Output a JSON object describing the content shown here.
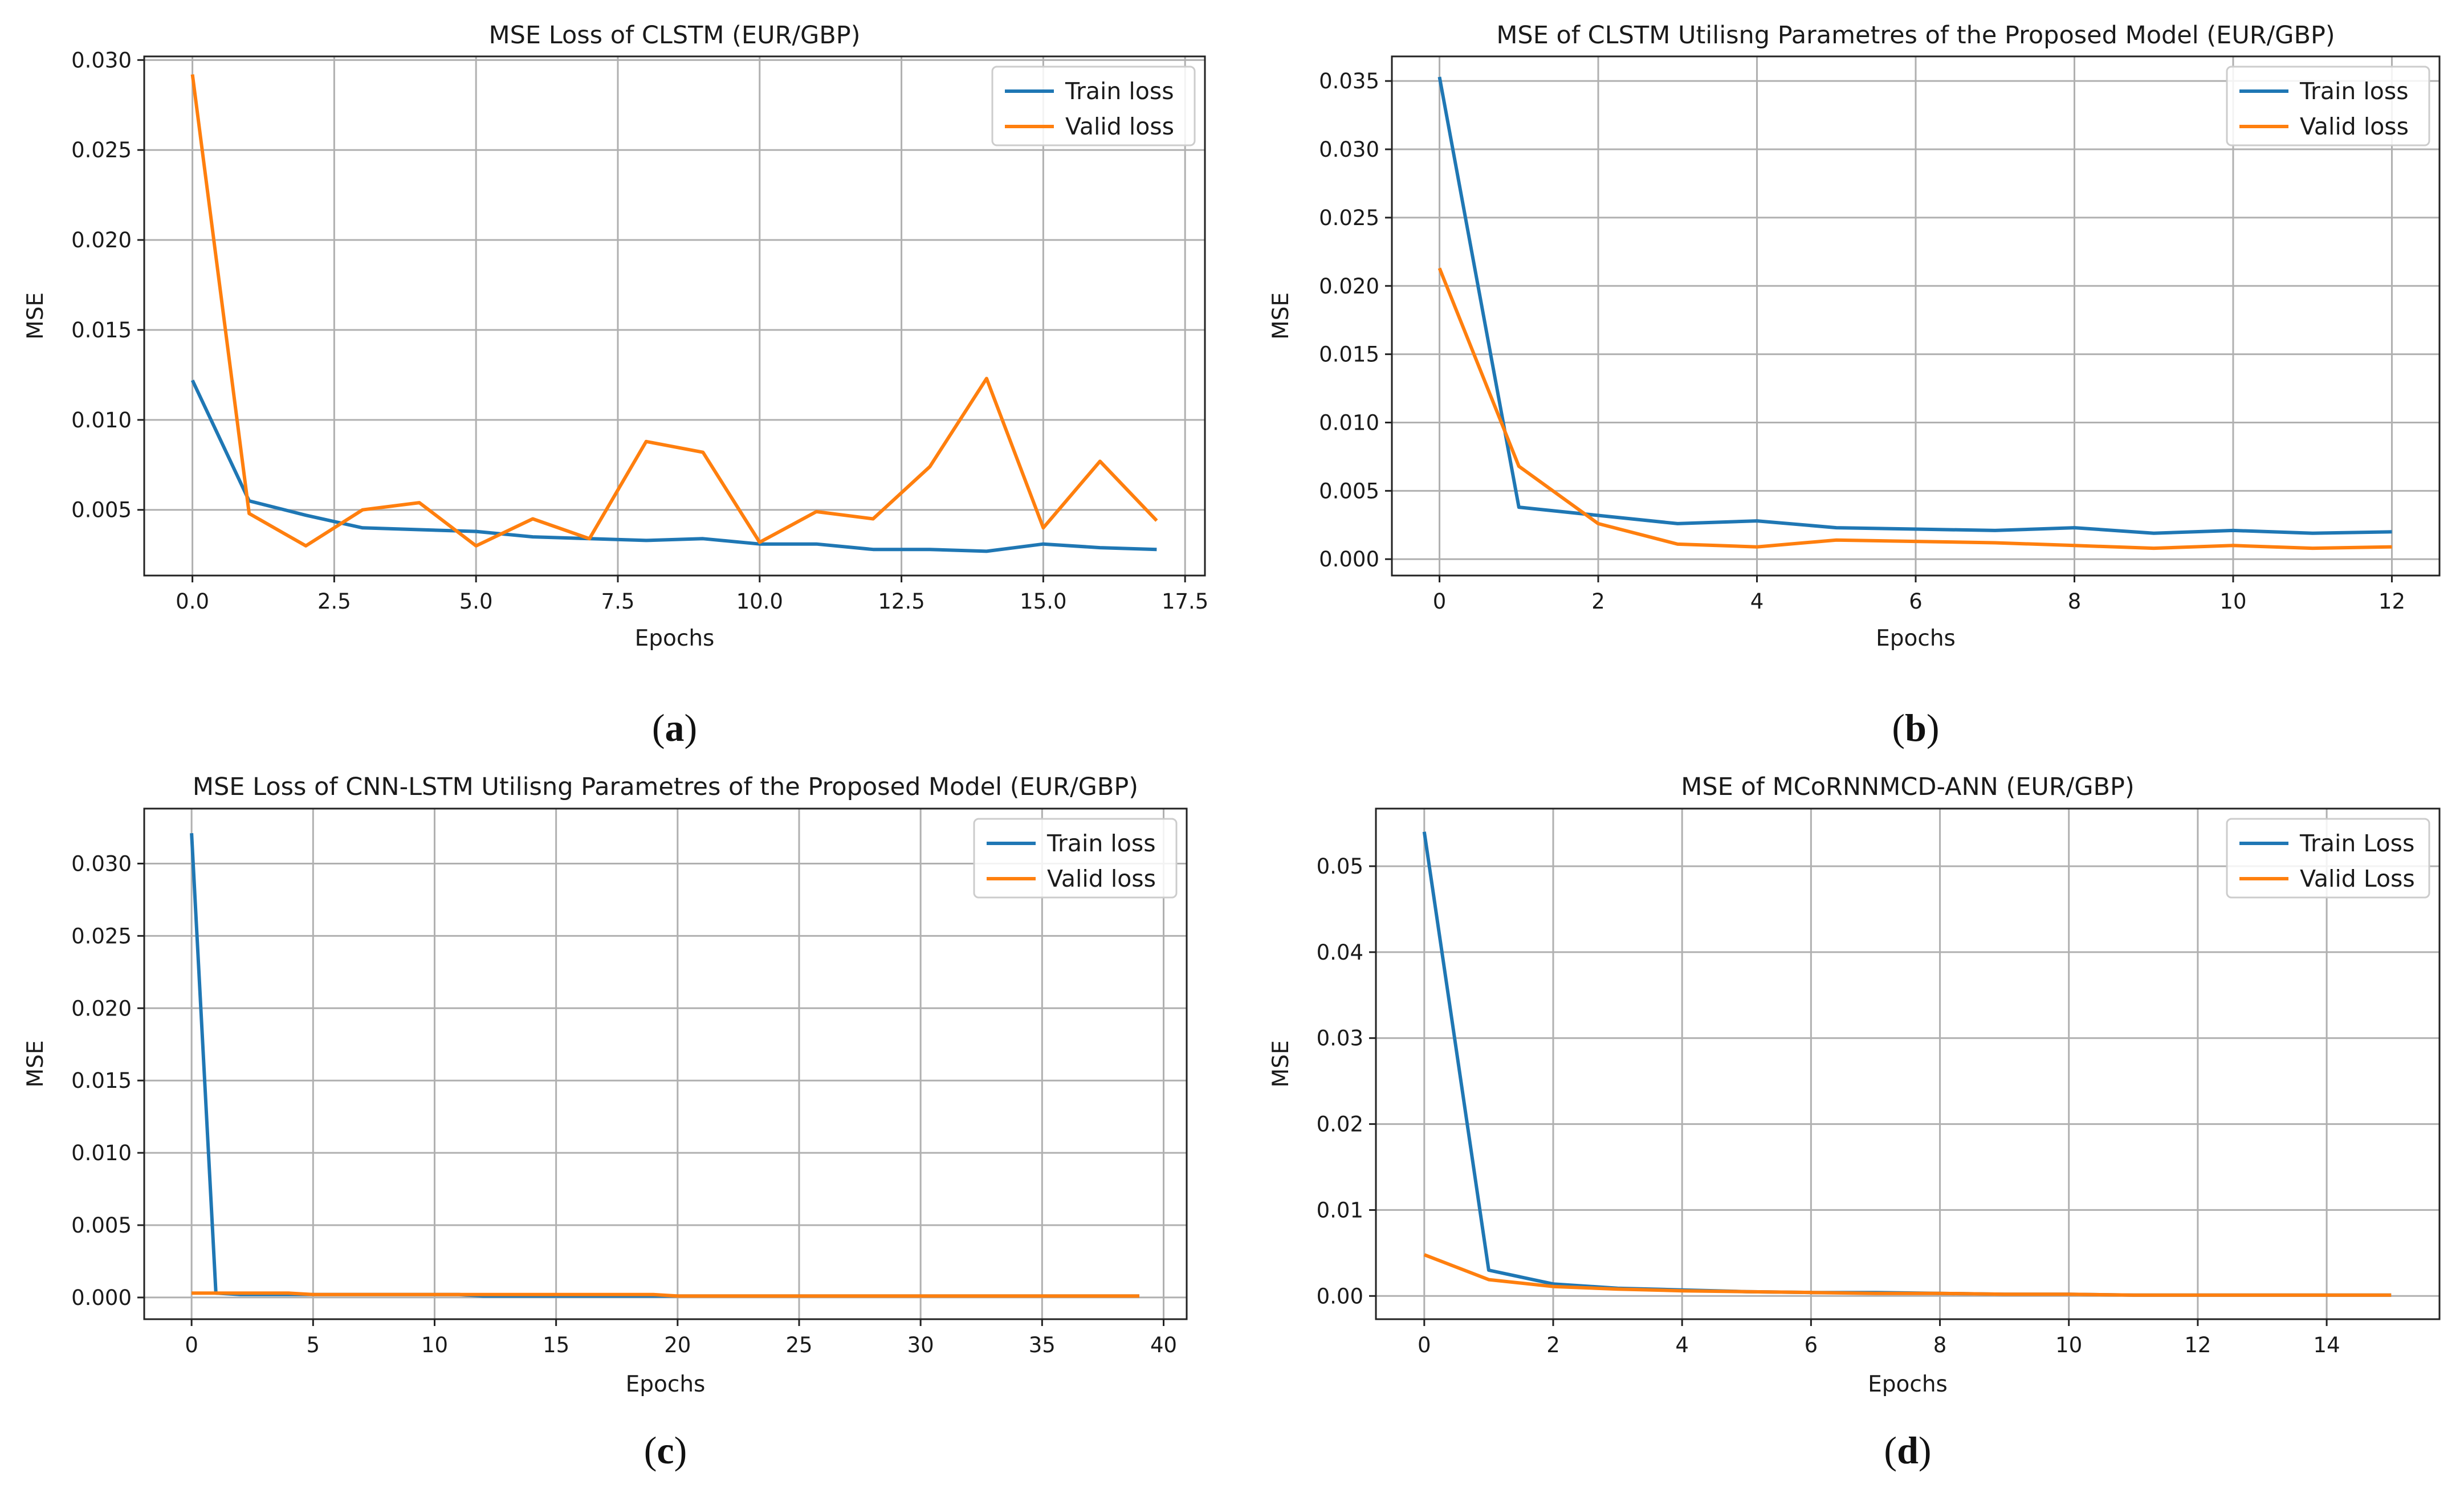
{
  "chart_data": [
    {
      "type": "line",
      "title": "MSE Loss of CLSTM (EUR/GBP)",
      "xlabel": "Epochs",
      "ylabel": "MSE",
      "caption": "a",
      "xlim": [
        -0.85,
        17.85
      ],
      "ylim": [
        0.00135,
        0.0302
      ],
      "xticks": [
        0,
        2.5,
        5,
        7.5,
        10,
        12.5,
        15,
        17.5
      ],
      "xtick_labels": [
        "0.0",
        "2.5",
        "5.0",
        "7.5",
        "10.0",
        "12.5",
        "15.0",
        "17.5"
      ],
      "yticks": [
        0.005,
        0.01,
        0.015,
        0.02,
        0.025,
        0.03
      ],
      "ytick_labels": [
        "0.005",
        "0.010",
        "0.015",
        "0.020",
        "0.025",
        "0.030"
      ],
      "grid": true,
      "legend_position": "top-right",
      "x": [
        0,
        1,
        2,
        3,
        4,
        5,
        6,
        7,
        8,
        9,
        10,
        11,
        12,
        13,
        14,
        15,
        16,
        17
      ],
      "series": [
        {
          "name": "Train loss",
          "color": "#1f77b4",
          "values": [
            0.0122,
            0.0055,
            0.0047,
            0.004,
            0.0039,
            0.0038,
            0.0035,
            0.0034,
            0.0033,
            0.0034,
            0.0031,
            0.0031,
            0.0028,
            0.0028,
            0.0027,
            0.0031,
            0.0029,
            0.0028
          ]
        },
        {
          "name": "Valid loss",
          "color": "#ff7f0e",
          "values": [
            0.0292,
            0.0048,
            0.003,
            0.005,
            0.0054,
            0.003,
            0.0045,
            0.0034,
            0.0088,
            0.0082,
            0.0032,
            0.0049,
            0.0045,
            0.0074,
            0.0123,
            0.004,
            0.0077,
            0.0044
          ]
        }
      ]
    },
    {
      "type": "line",
      "title": "MSE of CLSTM Utilisng Parametres of the Proposed Model (EUR/GBP)",
      "xlabel": "Epochs",
      "ylabel": "MSE",
      "caption": "b",
      "xlim": [
        -0.6,
        12.6
      ],
      "ylim": [
        -0.0012,
        0.0368
      ],
      "xticks": [
        0,
        2,
        4,
        6,
        8,
        10,
        12
      ],
      "xtick_labels": [
        "0",
        "2",
        "4",
        "6",
        "8",
        "10",
        "12"
      ],
      "yticks": [
        0,
        0.005,
        0.01,
        0.015,
        0.02,
        0.025,
        0.03,
        0.035
      ],
      "ytick_labels": [
        "0.000",
        "0.005",
        "0.010",
        "0.015",
        "0.020",
        "0.025",
        "0.030",
        "0.035"
      ],
      "grid": true,
      "legend_position": "top-right",
      "x": [
        0,
        1,
        2,
        3,
        4,
        5,
        6,
        7,
        8,
        9,
        10,
        11,
        12
      ],
      "series": [
        {
          "name": "Train loss",
          "color": "#1f77b4",
          "values": [
            0.0353,
            0.0038,
            0.0032,
            0.0026,
            0.0028,
            0.0023,
            0.0022,
            0.0021,
            0.0023,
            0.0019,
            0.0021,
            0.0019,
            0.002
          ]
        },
        {
          "name": "Valid loss",
          "color": "#ff7f0e",
          "values": [
            0.0213,
            0.0068,
            0.0026,
            0.0011,
            0.0009,
            0.0014,
            0.0013,
            0.0012,
            0.001,
            0.0008,
            0.001,
            0.0008,
            0.0009
          ]
        }
      ]
    },
    {
      "type": "line",
      "title": "MSE Loss of CNN-LSTM Utilisng Parametres of the Proposed Model (EUR/GBP)",
      "xlabel": "Epochs",
      "ylabel": "MSE",
      "caption": "c",
      "xlim": [
        -1.95,
        40.95
      ],
      "ylim": [
        -0.0015,
        0.0338
      ],
      "xticks": [
        0,
        5,
        10,
        15,
        20,
        25,
        30,
        35,
        40
      ],
      "xtick_labels": [
        "0",
        "5",
        "10",
        "15",
        "20",
        "25",
        "30",
        "35",
        "40"
      ],
      "yticks": [
        0,
        0.005,
        0.01,
        0.015,
        0.02,
        0.025,
        0.03
      ],
      "ytick_labels": [
        "0.000",
        "0.005",
        "0.010",
        "0.015",
        "0.020",
        "0.025",
        "0.030"
      ],
      "grid": true,
      "legend_position": "top-right",
      "x": [
        0,
        1,
        2,
        3,
        4,
        5,
        6,
        7,
        8,
        9,
        10,
        11,
        12,
        13,
        14,
        15,
        16,
        17,
        18,
        19,
        20,
        21,
        22,
        23,
        24,
        25,
        26,
        27,
        28,
        29,
        30,
        31,
        32,
        33,
        34,
        35,
        36,
        37,
        38,
        39
      ],
      "series": [
        {
          "name": "Train loss",
          "color": "#1f77b4",
          "values": [
            0.0321,
            0.0003,
            0.0002,
            0.0002,
            0.0002,
            0.0002,
            0.0002,
            0.0002,
            0.0002,
            0.0002,
            0.0002,
            0.0002,
            0.0001,
            0.0001,
            0.0001,
            0.0001,
            0.0001,
            0.0001,
            0.0001,
            0.0001,
            0.0001,
            0.0001,
            0.0001,
            0.0001,
            0.0001,
            0.0001,
            0.0001,
            0.0001,
            0.0001,
            0.0001,
            0.0001,
            0.0001,
            0.0001,
            0.0001,
            0.0001,
            0.0001,
            0.0001,
            0.0001,
            0.0001,
            0.0001
          ]
        },
        {
          "name": "Valid loss",
          "color": "#ff7f0e",
          "values": [
            0.0003,
            0.0003,
            0.0003,
            0.0003,
            0.0003,
            0.0002,
            0.0002,
            0.0002,
            0.0002,
            0.0002,
            0.0002,
            0.0002,
            0.0002,
            0.0002,
            0.0002,
            0.0002,
            0.0002,
            0.0002,
            0.0002,
            0.0002,
            0.0001,
            0.0001,
            0.0001,
            0.0001,
            0.0001,
            0.0001,
            0.0001,
            0.0001,
            0.0001,
            0.0001,
            0.0001,
            0.0001,
            0.0001,
            0.0001,
            0.0001,
            0.0001,
            0.0001,
            0.0001,
            0.0001,
            0.0001
          ]
        }
      ]
    },
    {
      "type": "line",
      "title": "MSE of MCoRNNMCD-ANN (EUR/GBP)",
      "xlabel": "Epochs",
      "ylabel": "MSE",
      "caption": "d",
      "xlim": [
        -0.75,
        15.75
      ],
      "ylim": [
        -0.0027,
        0.0567
      ],
      "xticks": [
        0,
        2,
        4,
        6,
        8,
        10,
        12,
        14
      ],
      "xtick_labels": [
        "0",
        "2",
        "4",
        "6",
        "8",
        "10",
        "12",
        "14"
      ],
      "yticks": [
        0,
        0.01,
        0.02,
        0.03,
        0.04,
        0.05
      ],
      "ytick_labels": [
        "0.00",
        "0.01",
        "0.02",
        "0.03",
        "0.04",
        "0.05"
      ],
      "grid": true,
      "legend_position": "top-right",
      "x": [
        0,
        1,
        2,
        3,
        4,
        5,
        6,
        7,
        8,
        9,
        10,
        11,
        12,
        13,
        14,
        15
      ],
      "series": [
        {
          "name": "Train Loss",
          "color": "#1f77b4",
          "values": [
            0.054,
            0.003,
            0.0014,
            0.0009,
            0.0007,
            0.0005,
            0.0004,
            0.0004,
            0.0003,
            0.0002,
            0.0002,
            0.0001,
            0.0001,
            0.0001,
            0.0001,
            0.0001
          ]
        },
        {
          "name": "Valid Loss",
          "color": "#ff7f0e",
          "values": [
            0.0048,
            0.0019,
            0.0011,
            0.0008,
            0.0006,
            0.0005,
            0.0004,
            0.0003,
            0.0003,
            0.0002,
            0.0002,
            0.0001,
            0.0001,
            0.0001,
            0.0001,
            0.0001
          ]
        }
      ]
    }
  ]
}
